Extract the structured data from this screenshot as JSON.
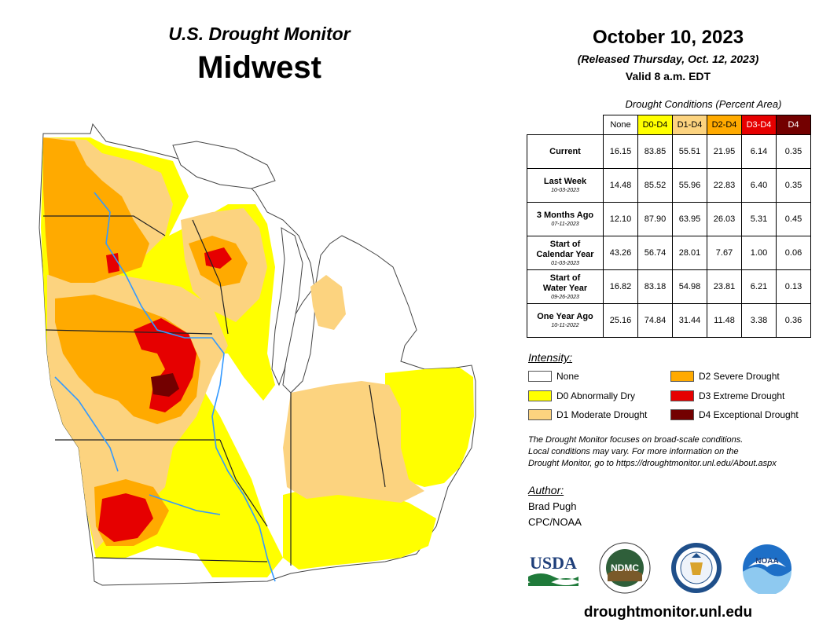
{
  "header": {
    "supertitle": "U.S. Drought Monitor",
    "region": "Midwest",
    "date": "October 10, 2023",
    "released": "(Released Thursday, Oct. 12, 2023)",
    "valid": "Valid 8 a.m. EDT"
  },
  "table": {
    "caption": "Drought Conditions (Percent Area)",
    "columns": [
      "None",
      "D0-D4",
      "D1-D4",
      "D2-D4",
      "D3-D4",
      "D4"
    ],
    "rows": [
      {
        "label": "Current",
        "label2": "",
        "date": "",
        "values": [
          "16.15",
          "83.85",
          "55.51",
          "21.95",
          "6.14",
          "0.35"
        ]
      },
      {
        "label": "Last Week",
        "label2": "",
        "date": "10-03-2023",
        "values": [
          "14.48",
          "85.52",
          "55.96",
          "22.83",
          "6.40",
          "0.35"
        ]
      },
      {
        "label": "3 Months Ago",
        "label2": "",
        "date": "07-11-2023",
        "values": [
          "12.10",
          "87.90",
          "63.95",
          "26.03",
          "5.31",
          "0.45"
        ]
      },
      {
        "label": "Start of",
        "label2": "Calendar Year",
        "date": "01-03-2023",
        "values": [
          "43.26",
          "56.74",
          "28.01",
          "7.67",
          "1.00",
          "0.06"
        ]
      },
      {
        "label": "Start of",
        "label2": "Water Year",
        "date": "09-26-2023",
        "values": [
          "16.82",
          "83.18",
          "54.98",
          "23.81",
          "6.21",
          "0.13"
        ]
      },
      {
        "label": "One Year Ago",
        "label2": "",
        "date": "10-11-2022",
        "values": [
          "25.16",
          "74.84",
          "31.44",
          "11.48",
          "3.38",
          "0.36"
        ]
      }
    ]
  },
  "legend": {
    "title": "Intensity:",
    "items": [
      {
        "label": "None",
        "color": "#ffffff"
      },
      {
        "label": "D0 Abnormally Dry",
        "color": "#ffff00"
      },
      {
        "label": "D1 Moderate Drought",
        "color": "#fcd37f"
      },
      {
        "label": "D2 Severe Drought",
        "color": "#ffaa00"
      },
      {
        "label": "D3 Extreme Drought",
        "color": "#e60000"
      },
      {
        "label": "D4 Exceptional Drought",
        "color": "#730000"
      }
    ]
  },
  "note": {
    "line1": "The Drought Monitor focuses on broad-scale conditions.",
    "line2": "Local conditions may vary. For more information on the",
    "line3": "Drought Monitor, go to https://droughtmonitor.unl.edu/About.aspx"
  },
  "author": {
    "title": "Author:",
    "name": "Brad Pugh",
    "org": "CPC/NOAA"
  },
  "logos": {
    "usda": "USDA",
    "ndmc": "NDMC",
    "noaa": "NOAA"
  },
  "footer": {
    "website": "droughtmonitor.unl.edu"
  },
  "colors": {
    "none": "#ffffff",
    "d0": "#ffff00",
    "d1": "#fcd37f",
    "d2": "#ffaa00",
    "d3": "#e60000",
    "d4": "#730000",
    "water": "#3399ff",
    "lake": "#9fd4f0"
  }
}
